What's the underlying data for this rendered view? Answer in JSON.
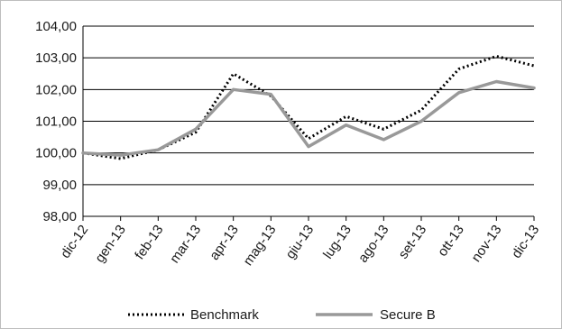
{
  "chart_data": {
    "type": "line",
    "categories": [
      "dic-12",
      "gen-13",
      "feb-13",
      "mar-13",
      "apr-13",
      "mag-13",
      "giu-13",
      "lug-13",
      "ago-13",
      "set-13",
      "ott-13",
      "nov-13",
      "dic-13"
    ],
    "series": [
      {
        "name": "Benchmark",
        "values": [
          100.0,
          99.82,
          100.1,
          100.65,
          102.5,
          101.8,
          100.45,
          101.15,
          100.75,
          101.35,
          102.65,
          103.05,
          102.75
        ],
        "color": "#000000",
        "style": "dotted"
      },
      {
        "name": "Secure B",
        "values": [
          100.0,
          99.93,
          100.1,
          100.75,
          102.0,
          101.85,
          100.2,
          100.88,
          100.42,
          101.0,
          101.9,
          102.25,
          102.05
        ],
        "color": "#999999",
        "style": "solid"
      }
    ],
    "y_ticks": [
      "98,00",
      "99,00",
      "100,00",
      "101,00",
      "102,00",
      "103,00",
      "104,00"
    ],
    "ylim": [
      98,
      104
    ],
    "grid": true,
    "legend_position": "bottom"
  }
}
